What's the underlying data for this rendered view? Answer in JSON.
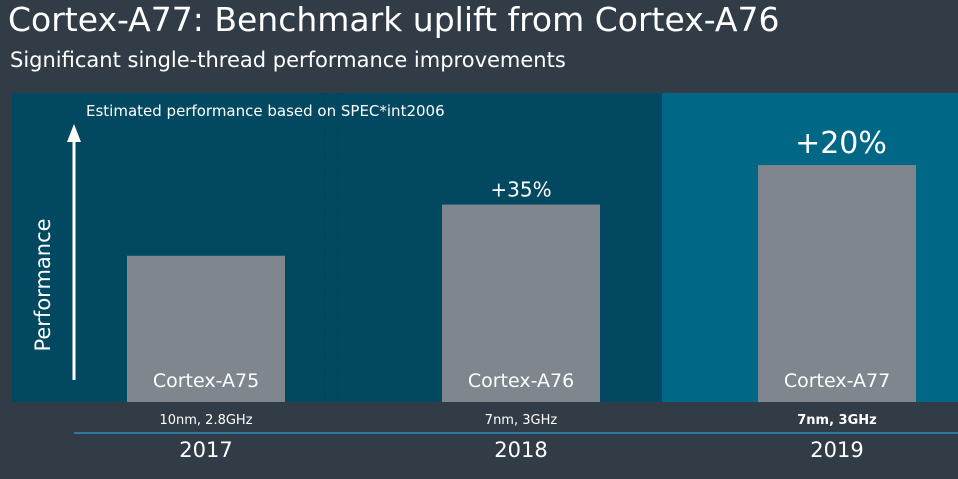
{
  "page": {
    "title": "Cortex-A77: Benchmark uplift from Cortex-A76",
    "subtitle": "Significant single-thread performance improvements"
  },
  "colors": {
    "background": "#323c47",
    "panel_dark": "#024861",
    "panel_highlight": "#006787",
    "bar": "#7f868e",
    "divider": "#2a8fc0",
    "text": "#ffffff"
  },
  "chart_data": {
    "type": "bar",
    "title": "",
    "annotation": "Estimated performance based on SPEC*int2006",
    "ylabel": "Performance",
    "ylim": [
      0,
      1.6
    ],
    "categories": [
      "2017",
      "2018",
      "2019"
    ],
    "bar_labels": [
      "Cortex-A75",
      "Cortex-A76",
      "Cortex-A77"
    ],
    "process_labels": [
      "10nm, 2.8GHz",
      "7nm, 3GHz",
      "7nm, 3GHz"
    ],
    "values": [
      1.0,
      1.35,
      1.62
    ],
    "uplift_labels": [
      "",
      "+35%",
      "+20%"
    ],
    "highlight_index": 2
  }
}
